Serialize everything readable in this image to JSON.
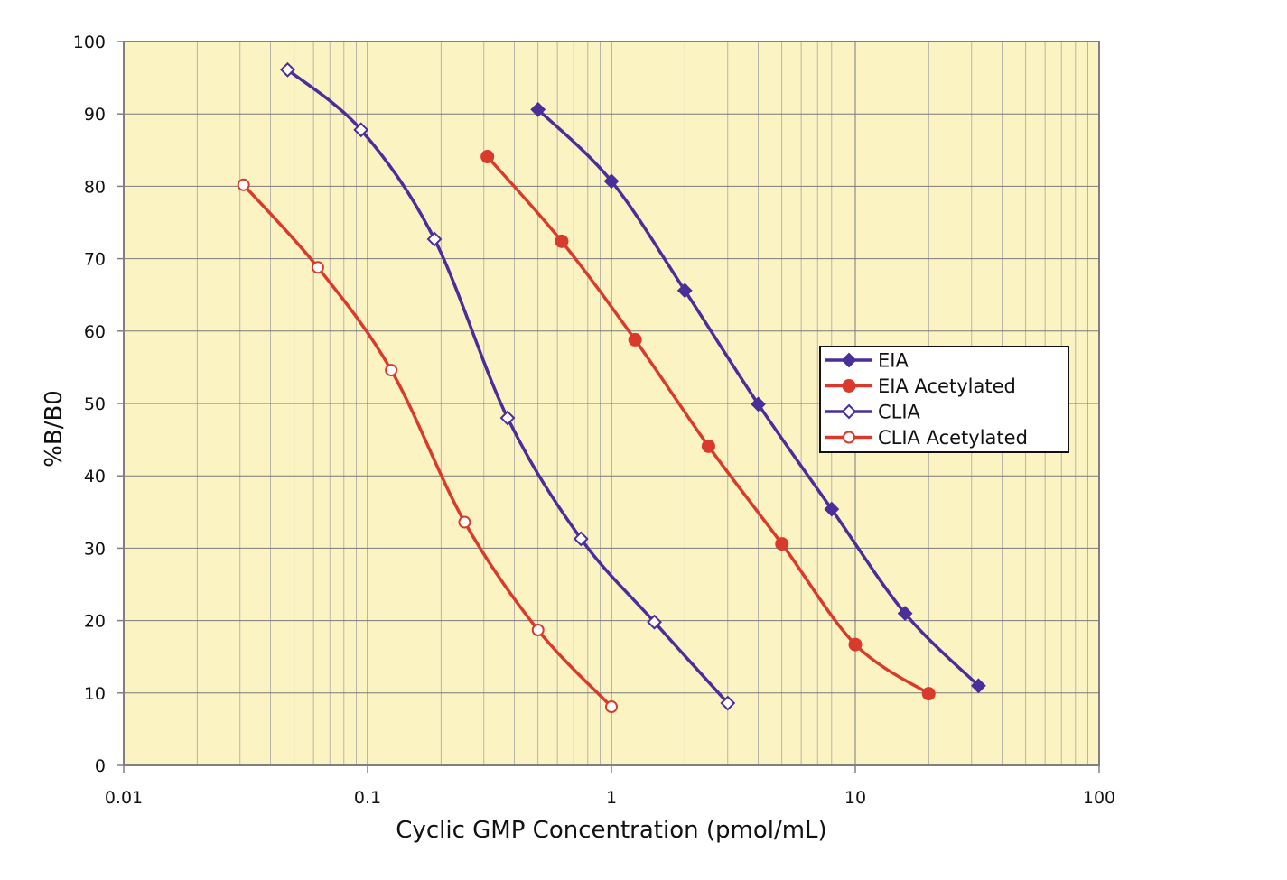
{
  "chart_data": {
    "type": "line",
    "xlabel": "Cyclic GMP Concentration (pmol/mL)",
    "ylabel": "%B/B0",
    "x_scale": "log",
    "xlim": [
      0.01,
      100
    ],
    "ylim": [
      0,
      100
    ],
    "x_ticks": [
      "0.01",
      "0.1",
      "1",
      "10",
      "100"
    ],
    "y_ticks": [
      "0",
      "10",
      "20",
      "30",
      "40",
      "50",
      "60",
      "70",
      "80",
      "90",
      "100"
    ],
    "grid": true,
    "legend_position": "right",
    "plot_background": "#fcf3c3",
    "series": [
      {
        "name": "EIA",
        "color": "#4a2e9a",
        "marker": "diamond-filled",
        "points": [
          [
            0.5,
            90.6
          ],
          [
            1,
            80.7
          ],
          [
            2,
            65.6
          ],
          [
            4,
            49.9
          ],
          [
            8,
            35.4
          ],
          [
            16,
            21.0
          ],
          [
            32,
            11.0
          ]
        ]
      },
      {
        "name": "EIA Acetylated",
        "color": "#d93a2b",
        "marker": "circle-filled",
        "points": [
          [
            0.31,
            84.1
          ],
          [
            0.625,
            72.4
          ],
          [
            1.25,
            58.8
          ],
          [
            2.5,
            44.1
          ],
          [
            5,
            30.6
          ],
          [
            10,
            16.7
          ],
          [
            20,
            9.9
          ]
        ]
      },
      {
        "name": "CLIA",
        "color": "#4a2e9a",
        "marker": "diamond-open",
        "points": [
          [
            0.047,
            96.1
          ],
          [
            0.094,
            87.8
          ],
          [
            0.188,
            72.7
          ],
          [
            0.375,
            48.0
          ],
          [
            0.75,
            31.3
          ],
          [
            1.5,
            19.8
          ],
          [
            3.0,
            8.6
          ]
        ]
      },
      {
        "name": "CLIA Acetylated",
        "color": "#d93a2b",
        "marker": "circle-open",
        "points": [
          [
            0.031,
            80.2
          ],
          [
            0.0625,
            68.8
          ],
          [
            0.125,
            54.6
          ],
          [
            0.25,
            33.6
          ],
          [
            0.5,
            18.7
          ],
          [
            1.0,
            8.1
          ]
        ]
      }
    ]
  }
}
